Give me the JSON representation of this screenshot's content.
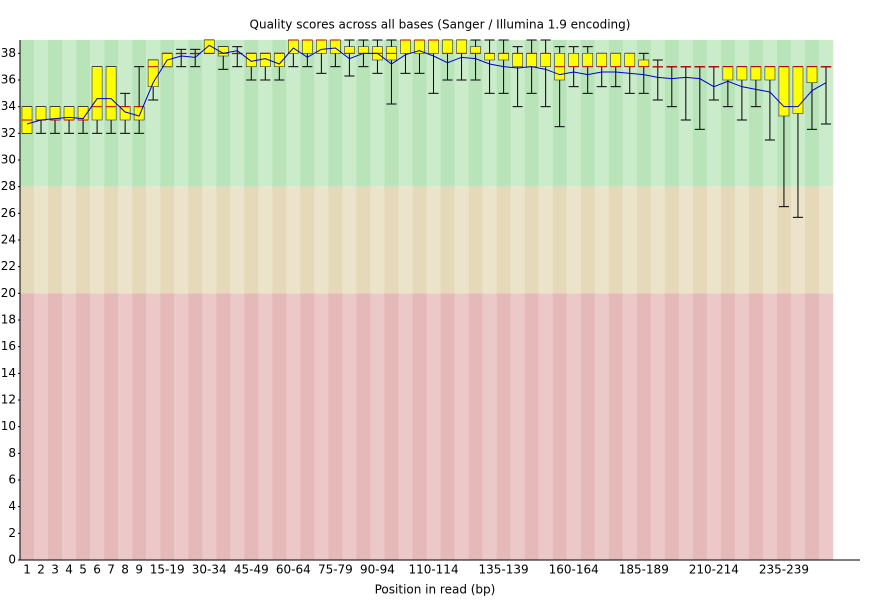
{
  "chart_data": {
    "type": "box",
    "title": "Quality scores across all bases (Sanger / Illumina 1.9 encoding)",
    "x_label": "Position in read (bp)",
    "categories": [
      "1",
      "2",
      "3",
      "4",
      "5",
      "6",
      "7",
      "8",
      "9",
      null,
      "15-19",
      null,
      null,
      "30-34",
      null,
      null,
      "45-49",
      null,
      null,
      "60-64",
      null,
      null,
      "75-79",
      null,
      null,
      "90-94",
      null,
      null,
      null,
      "110-114",
      null,
      null,
      null,
      null,
      "135-139",
      null,
      null,
      null,
      null,
      "160-164",
      null,
      null,
      null,
      null,
      "185-189",
      null,
      null,
      null,
      null,
      "210-214",
      null,
      null,
      null,
      null,
      "235-239",
      null,
      null,
      null
    ],
    "whislo": [
      32,
      32,
      32,
      32,
      32,
      32,
      32,
      32,
      32,
      34.5,
      37,
      37,
      37,
      38,
      36.8,
      37,
      36,
      36,
      36,
      37,
      37,
      36.5,
      37,
      36.3,
      37,
      36.5,
      34.2,
      36.5,
      36.5,
      35,
      36,
      36,
      36,
      35,
      35,
      34,
      35,
      34,
      32.5,
      35.5,
      35,
      35.5,
      35.5,
      35,
      35,
      34.5,
      34,
      33,
      32.3,
      34.5,
      34,
      33,
      34,
      31.5,
      26.5,
      25.7,
      32.3,
      32.7
    ],
    "q1": [
      32,
      33,
      33,
      33,
      33,
      33,
      33,
      33,
      33,
      35.5,
      37,
      38,
      38,
      38,
      37.8,
      38,
      37,
      37,
      37,
      38,
      38,
      38,
      38,
      38,
      38,
      37.5,
      37.5,
      38,
      38,
      38,
      38,
      38,
      38,
      37.5,
      37.5,
      37,
      37,
      37,
      36,
      37,
      37,
      37,
      37,
      37,
      37,
      37,
      37,
      37,
      37,
      37,
      36,
      36,
      36,
      36,
      33.3,
      33.5,
      35.8,
      37
    ],
    "median": [
      33,
      33,
      33,
      33,
      33,
      34,
      34,
      34,
      34,
      37,
      38,
      38,
      38,
      38,
      38,
      38,
      38,
      38,
      38,
      39,
      39,
      39,
      39,
      38,
      38,
      38,
      38,
      39,
      39,
      39,
      38,
      38,
      38,
      38,
      38,
      38,
      38,
      38,
      37,
      37,
      37,
      37,
      37,
      37,
      37,
      37,
      37,
      37,
      37,
      37,
      37,
      37,
      37,
      37,
      37,
      37,
      37,
      37
    ],
    "q3": [
      34,
      34,
      34,
      34,
      34,
      37,
      37,
      34,
      34,
      37.5,
      38,
      38,
      38,
      39,
      38.5,
      38,
      38,
      38,
      38,
      39,
      39,
      39,
      39,
      38.5,
      38.5,
      38.5,
      38.5,
      39,
      39,
      39,
      39,
      39,
      38.5,
      38,
      38,
      38,
      38,
      38,
      38,
      38,
      38,
      38,
      38,
      38,
      37.5,
      37,
      37,
      37,
      37,
      37,
      37,
      37,
      37,
      37,
      37,
      37,
      37,
      37
    ],
    "whishi": [
      34,
      34,
      34,
      34,
      34,
      37,
      37,
      35,
      37,
      37.5,
      38,
      38.3,
      38.3,
      39,
      38.5,
      38.5,
      38,
      38,
      38,
      39,
      39,
      39,
      39,
      39,
      39,
      39,
      39,
      39,
      39,
      39,
      39,
      39,
      39,
      39,
      39,
      38.5,
      39,
      39,
      38.5,
      38.5,
      38.5,
      38,
      38,
      38,
      38,
      37.5,
      37,
      37,
      37,
      37,
      37,
      37,
      37,
      37,
      37,
      37,
      37,
      37
    ],
    "mean": [
      32.7,
      33.0,
      33.1,
      33.2,
      33.1,
      34.6,
      34.6,
      33.6,
      33.3,
      35.8,
      37.5,
      37.8,
      37.7,
      38.6,
      38.0,
      38.2,
      37.4,
      37.6,
      37.2,
      38.4,
      37.7,
      38.3,
      38.4,
      37.6,
      38.0,
      38.0,
      37.2,
      37.9,
      38.2,
      37.8,
      37.3,
      37.7,
      37.6,
      37.2,
      37.0,
      36.9,
      37.0,
      36.8,
      36.4,
      36.6,
      36.4,
      36.6,
      36.6,
      36.5,
      36.4,
      36.2,
      36.1,
      36.2,
      36.1,
      35.5,
      35.9,
      35.5,
      35.3,
      35.1,
      34.0,
      34.0,
      35.2,
      35.8
    ],
    "box_color": "#ffff00",
    "median_color": "#cc0000",
    "mean_color": "#0000cc",
    "zones": [
      {
        "from": 28,
        "to": 39,
        "color": "#b9e4b9",
        "alt_color": "#cbeccb"
      },
      {
        "from": 20,
        "to": 28,
        "color": "#e6d9b9",
        "alt_color": "#ece3cb"
      },
      {
        "from": 0,
        "to": 20,
        "color": "#e6b9b9",
        "alt_color": "#ecc8c8"
      }
    ],
    "ylim": [
      0,
      39
    ],
    "yticks": [
      0,
      2,
      4,
      6,
      8,
      10,
      12,
      14,
      16,
      18,
      20,
      22,
      24,
      26,
      28,
      30,
      32,
      34,
      36,
      38
    ]
  }
}
